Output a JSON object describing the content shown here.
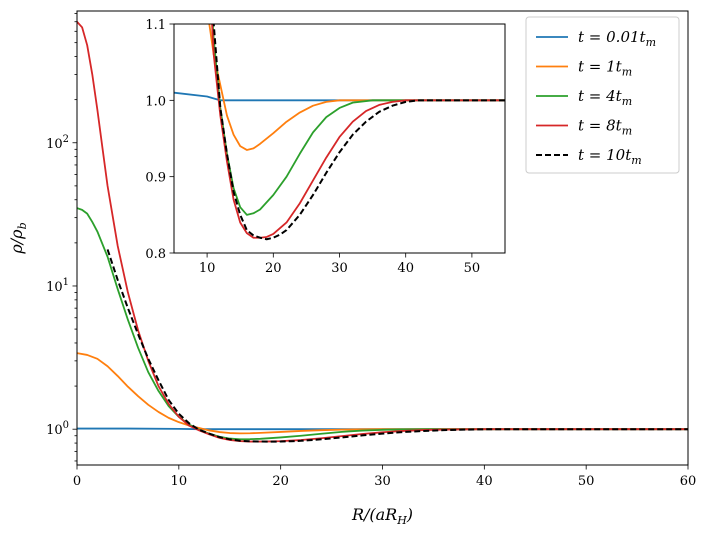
{
  "chart_data": [
    {
      "id": "main",
      "type": "line",
      "xlabel": "R/(aR_H)",
      "ylabel": "ρ/ρ_b",
      "xlim": [
        0,
        60
      ],
      "ylim_log10": [
        -0.25,
        2.92
      ],
      "yscale": "log",
      "xticks": [
        0,
        10,
        20,
        30,
        40,
        50,
        60
      ],
      "yticks": [
        {
          "value": 1,
          "label": "10^0"
        },
        {
          "value": 10,
          "label": "10^1"
        },
        {
          "value": 100,
          "label": "10^2"
        }
      ],
      "legend": "top-right",
      "series": [
        {
          "name": "t = 0.01 t_m",
          "label_t": "t",
          "label_num": "0.01",
          "color": "#1f77b4",
          "dash": false,
          "x": [
            0,
            5,
            10,
            12,
            15,
            20,
            30,
            40,
            60
          ],
          "y": [
            1.01,
            1.01,
            1.005,
            1.0,
            1.0,
            1.0,
            1.0,
            1.0,
            1.0
          ]
        },
        {
          "name": "t = 1 t_m",
          "label_t": "t",
          "label_num": "1",
          "color": "#ff7f0e",
          "dash": false,
          "x": [
            0,
            1,
            2,
            3,
            4,
            5,
            6,
            7,
            8,
            9,
            10,
            11,
            12,
            13,
            14,
            15,
            16,
            17,
            18,
            20,
            22,
            24,
            26,
            28,
            30,
            35,
            40,
            45,
            50,
            55,
            60
          ],
          "y": [
            3.4,
            3.3,
            3.1,
            2.75,
            2.35,
            1.98,
            1.7,
            1.48,
            1.32,
            1.2,
            1.12,
            1.06,
            1.02,
            0.98,
            0.955,
            0.94,
            0.935,
            0.937,
            0.943,
            0.957,
            0.972,
            0.984,
            0.993,
            0.998,
            1.0,
            1.0,
            1.0,
            1.0,
            1.0,
            1.0,
            1.0
          ]
        },
        {
          "name": "t = 4 t_m",
          "label_t": "t",
          "label_num": "4",
          "color": "#2ca02c",
          "dash": false,
          "x": [
            0,
            0.5,
            1,
            1.5,
            2,
            3,
            4,
            5,
            6,
            7,
            8,
            9,
            10,
            11,
            12,
            13,
            14,
            15,
            16,
            17,
            18,
            20,
            22,
            24,
            26,
            28,
            30,
            32,
            35,
            40,
            45,
            50,
            55,
            60
          ],
          "y": [
            35,
            34,
            32,
            28,
            24,
            16,
            9.5,
            5.8,
            3.7,
            2.5,
            1.85,
            1.45,
            1.22,
            1.08,
            0.99,
            0.93,
            0.885,
            0.86,
            0.85,
            0.852,
            0.857,
            0.876,
            0.9,
            0.93,
            0.958,
            0.978,
            0.99,
            0.997,
            1.0,
            1.0,
            1.0,
            1.0,
            1.0,
            1.0
          ]
        },
        {
          "name": "t = 8 t_m",
          "label_t": "t",
          "label_num": "8",
          "color": "#d62728",
          "dash": false,
          "x": [
            0,
            0.5,
            1,
            1.5,
            2,
            2.5,
            3,
            4,
            5,
            6,
            7,
            8,
            9,
            10,
            11,
            12,
            13,
            14,
            15,
            16,
            17,
            18,
            19,
            20,
            22,
            24,
            26,
            28,
            30,
            32,
            34,
            36,
            38,
            40,
            43,
            45,
            50,
            55,
            60
          ],
          "y": [
            700,
            640,
            480,
            300,
            170,
            92,
            50,
            19,
            9.0,
            4.9,
            3.0,
            2.0,
            1.5,
            1.22,
            1.06,
            0.98,
            0.92,
            0.87,
            0.84,
            0.826,
            0.82,
            0.82,
            0.821,
            0.825,
            0.84,
            0.865,
            0.895,
            0.925,
            0.952,
            0.972,
            0.986,
            0.994,
            0.998,
            1.0,
            1.0,
            1.0,
            1.0,
            1.0,
            1.0
          ]
        },
        {
          "name": "t = 10 t_m",
          "label_t": "t",
          "label_num": "10",
          "color": "#000000",
          "dash": true,
          "x": [
            3,
            4,
            5,
            6,
            7,
            8,
            9,
            10,
            11,
            12,
            13,
            14,
            15,
            16,
            17,
            18,
            19,
            20,
            21,
            22,
            24,
            26,
            28,
            30,
            32,
            34,
            36,
            38,
            40,
            42,
            44,
            46,
            50,
            55,
            60
          ],
          "y": [
            18,
            11,
            7.0,
            4.6,
            3.1,
            2.2,
            1.6,
            1.28,
            1.1,
            0.99,
            0.93,
            0.88,
            0.85,
            0.83,
            0.823,
            0.82,
            0.818,
            0.82,
            0.824,
            0.83,
            0.85,
            0.876,
            0.905,
            0.932,
            0.955,
            0.972,
            0.985,
            0.993,
            0.998,
            1.0,
            1.0,
            1.0,
            1.0,
            1.0,
            1.0
          ]
        }
      ]
    },
    {
      "id": "inset",
      "type": "line",
      "xlim": [
        5,
        55
      ],
      "ylim": [
        0.8,
        1.1
      ],
      "xticks": [
        10,
        20,
        30,
        40,
        50
      ],
      "yticks": [
        0.8,
        0.9,
        1.0,
        1.1
      ],
      "ytick_labels": [
        "0.8",
        "0.9",
        "1.0",
        "1.1"
      ]
    }
  ]
}
